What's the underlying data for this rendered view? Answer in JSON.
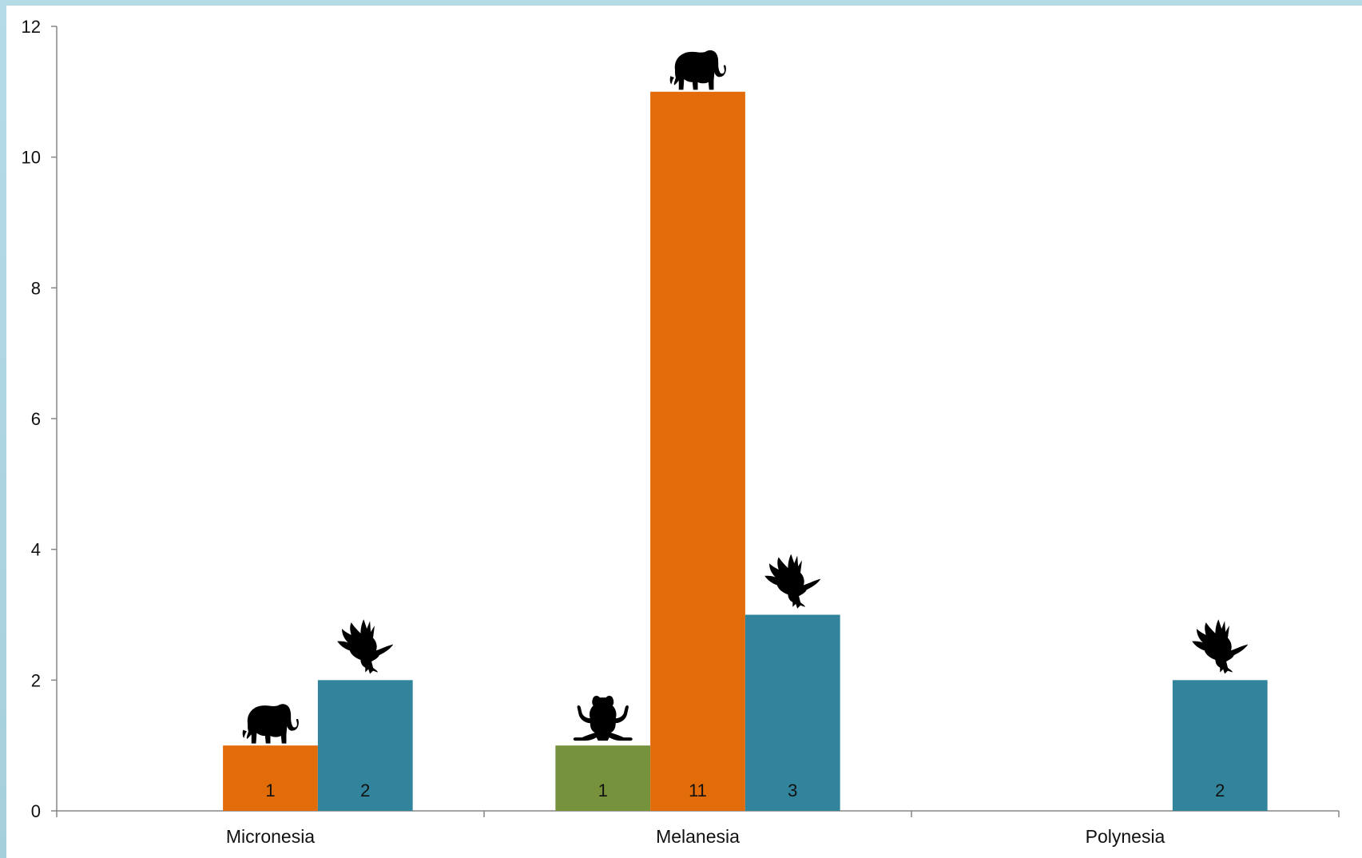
{
  "chart_data": {
    "type": "bar",
    "categories": [
      "Micronesia",
      "Melanesia",
      "Polynesia"
    ],
    "series": [
      {
        "icon": "frog-icon",
        "color": "#76923c",
        "values": [
          null,
          1,
          null
        ]
      },
      {
        "icon": "elephant-icon",
        "color": "#e36c0a",
        "values": [
          1,
          11,
          null
        ]
      },
      {
        "icon": "eagle-icon",
        "color": "#31849b",
        "values": [
          2,
          3,
          2
        ]
      }
    ],
    "ylim": [
      0,
      12
    ],
    "yticks": [
      0,
      2,
      4,
      6,
      8,
      10,
      12
    ],
    "grid": false,
    "data_labels": true,
    "title": "",
    "xlabel": "",
    "ylabel": ""
  }
}
